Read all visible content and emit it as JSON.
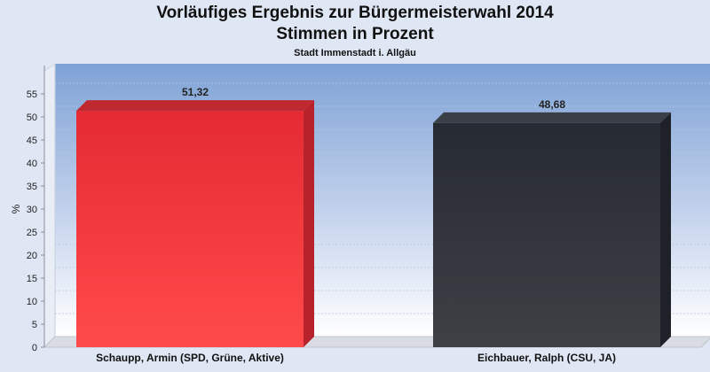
{
  "chart_data": {
    "type": "bar",
    "title": "Vorläufiges Ergebnis zur Bürgermeisterwahl 2014",
    "subtitle": "Stimmen in Prozent",
    "caption": "Stadt Immenstadt i. Allgäu",
    "ylabel": "%",
    "xlabel": "",
    "ylim": [
      0,
      60
    ],
    "yticks": [
      0,
      5,
      10,
      15,
      20,
      25,
      30,
      35,
      40,
      45,
      50,
      55
    ],
    "categories": [
      "Schaupp, Armin (SPD, Grüne, Aktive)",
      "Eichbauer, Ralph (CSU, JA)"
    ],
    "values": [
      51.32,
      48.68
    ],
    "value_labels": [
      "51,32",
      "48,68"
    ],
    "colors": [
      "#e8313a",
      "#2b2f38"
    ],
    "grid": true,
    "legend": "none"
  }
}
